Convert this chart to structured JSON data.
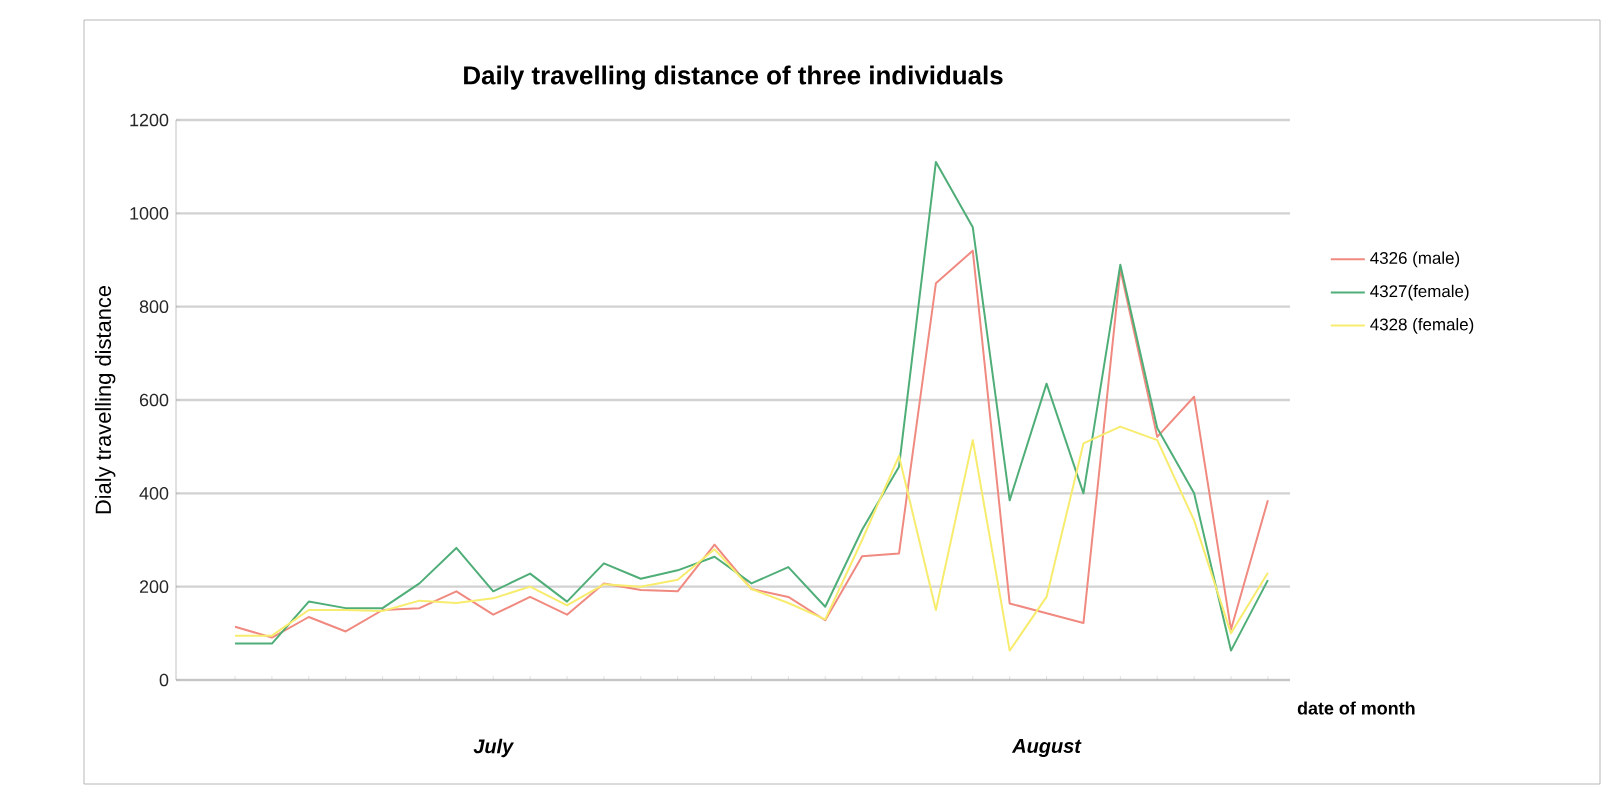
{
  "chart_data": {
    "type": "line",
    "title": "Daily travelling distance of three individuals",
    "ylabel": "Dialy  travelling distance",
    "xlabel": "date of month",
    "annotations": [
      "July",
      "August"
    ],
    "categories": [
      null,
      null,
      null,
      null,
      null,
      null,
      null,
      null,
      null,
      null,
      null,
      null,
      null,
      null,
      null,
      null,
      null,
      null,
      null,
      null,
      null,
      null,
      null,
      null,
      null,
      null,
      null,
      null,
      null
    ],
    "ylim": [
      0,
      1200
    ],
    "yticks": [
      0,
      200,
      400,
      600,
      800,
      1000,
      1200
    ],
    "grid": "y",
    "legend": "right",
    "marker": "none",
    "line_style": "solid",
    "series": [
      {
        "name": "4326 (male)",
        "color": "#f08a80",
        "values": [
          114,
          91,
          135,
          104,
          150,
          154,
          190,
          140,
          178,
          140,
          207,
          193,
          190,
          290,
          195,
          178,
          128,
          265,
          271,
          850,
          920,
          164,
          143,
          122,
          880,
          521,
          607,
          108,
          385
        ]
      },
      {
        "name": "4327(female)",
        "color": "#4fae78",
        "values": [
          78,
          78,
          168,
          154,
          154,
          207,
          283,
          190,
          228,
          168,
          250,
          217,
          235,
          264,
          207,
          242,
          157,
          322,
          457,
          1110,
          970,
          385,
          635,
          400,
          890,
          540,
          400,
          63,
          214
        ]
      },
      {
        "name": "4328 (female)",
        "color": "#f7ec6e",
        "values": [
          95,
          95,
          150,
          150,
          148,
          170,
          165,
          175,
          200,
          160,
          205,
          200,
          215,
          280,
          195,
          165,
          130,
          300,
          480,
          150,
          514,
          63,
          178,
          507,
          543,
          514,
          342,
          100,
          230
        ]
      }
    ]
  }
}
